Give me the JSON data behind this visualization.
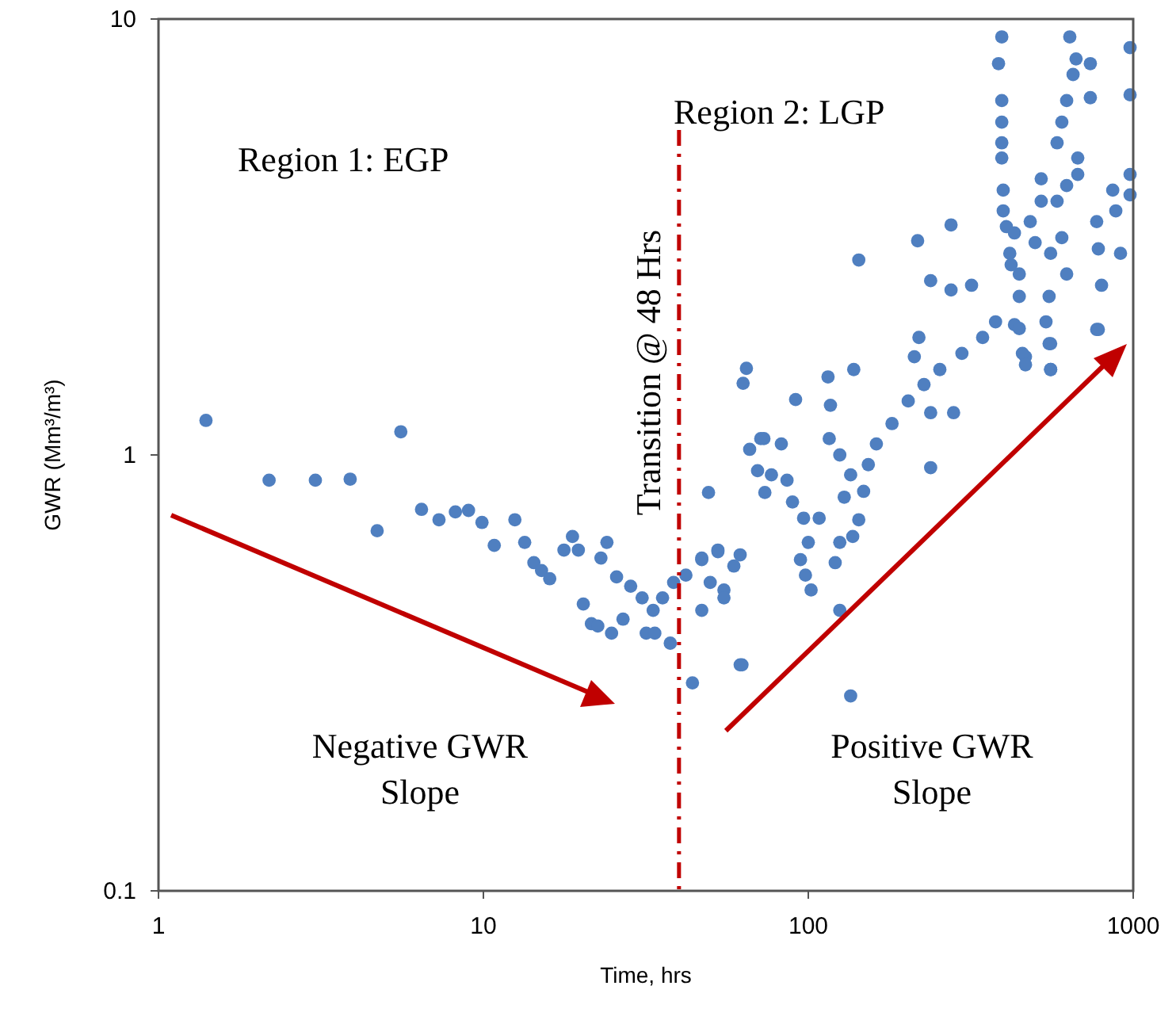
{
  "chart_data": {
    "type": "scatter",
    "xlabel": "Time, hrs",
    "ylabel": "GWR (Mm³/m³)",
    "log": "xy",
    "xlim": [
      1,
      1000
    ],
    "ylim": [
      0.1,
      10
    ],
    "xticks": [
      1,
      10,
      100,
      1000
    ],
    "yticks": [
      0.1,
      1,
      10
    ],
    "grid": false,
    "marker": "circle",
    "annotations": [
      "Region 1: EGP",
      "Region 2: LGP",
      "Negative GWR Slope",
      "Positive GWR Slope"
    ],
    "ref_lines": [
      {
        "axis": "x",
        "value": 40,
        "label": "Transition @ 48 Hrs",
        "color": "#c00000",
        "line_style": "dashed"
      }
    ],
    "series": [
      {
        "color": "#4f7fc0",
        "x": [
          1.4,
          2.19,
          3.04,
          3.89,
          5.57,
          4.71,
          6.45,
          7.3,
          8.2,
          9.0,
          9.9,
          10.8,
          12.5,
          13.4,
          14.3,
          15.1,
          16.0,
          18.8,
          17.7,
          19.6,
          24.0,
          23.0,
          25.7,
          20.3,
          21.5,
          22.5,
          24.8,
          26.9,
          28.4,
          30.8,
          33.3,
          35.6,
          38.5,
          31.7,
          33.7,
          37.6,
          44,
          42,
          47,
          52.7,
          49.9,
          55,
          47,
          59,
          61.7,
          49.3,
          64.5,
          63,
          91.4,
          115,
          138,
          117,
          66,
          73,
          82.6,
          69.8,
          77,
          86,
          73.5,
          89.4,
          96.7,
          108,
          100,
          94.6,
          98,
          102,
          121,
          125,
          137,
          143,
          116,
          125,
          135,
          129,
          148,
          153,
          162,
          181,
          203,
          227,
          254,
          297,
          344,
          377,
          219,
          212,
          238,
          280,
          238,
          125,
          135,
          62.5,
          47,
          52.7,
          61.7,
          55,
          431,
          551,
          557,
          466,
          772,
          394,
          385,
          394,
          394,
          394,
          394,
          398,
          407,
          421,
          446,
          446,
          456,
          466,
          482,
          521,
          521,
          557,
          551,
          539,
          557,
          557,
          583,
          583,
          603,
          624,
          653,
          667,
          638,
          675,
          675,
          624,
          603,
          624,
          738,
          738,
          772,
          781,
          799,
          865,
          884,
          914,
          978,
          978,
          978,
          978,
          781,
          398,
          431,
          499,
          446,
          417,
          275,
          217,
          143,
          238,
          275,
          318,
          71.4
        ],
        "values": [
          1.2,
          0.875,
          0.875,
          0.88,
          1.13,
          0.67,
          0.75,
          0.71,
          0.74,
          0.746,
          0.7,
          0.62,
          0.71,
          0.63,
          0.566,
          0.543,
          0.52,
          0.65,
          0.605,
          0.605,
          0.63,
          0.58,
          0.525,
          0.455,
          0.41,
          0.405,
          0.39,
          0.42,
          0.5,
          0.47,
          0.44,
          0.47,
          0.51,
          0.39,
          0.39,
          0.37,
          0.3,
          0.53,
          0.58,
          0.6,
          0.51,
          0.49,
          0.44,
          0.556,
          0.33,
          0.82,
          1.58,
          1.46,
          1.34,
          1.51,
          1.57,
          1.3,
          1.03,
          1.09,
          1.06,
          0.92,
          0.9,
          0.875,
          0.82,
          0.78,
          0.716,
          0.716,
          0.63,
          0.575,
          0.53,
          0.49,
          0.566,
          0.63,
          0.65,
          0.71,
          1.09,
          1.0,
          0.9,
          0.8,
          0.825,
          0.95,
          1.06,
          1.18,
          1.33,
          1.45,
          1.57,
          1.71,
          1.86,
          2.02,
          1.86,
          1.68,
          1.25,
          1.25,
          0.935,
          0.44,
          0.28,
          0.33,
          0.575,
          0.605,
          0.59,
          0.47,
          1.99,
          1.8,
          1.57,
          1.68,
          1.94,
          9.1,
          7.9,
          6.5,
          5.8,
          5.2,
          4.8,
          4.05,
          3.34,
          2.73,
          2.31,
          1.95,
          1.71,
          1.61,
          3.43,
          3.82,
          4.3,
          2.9,
          2.31,
          2.02,
          1.8,
          1.57,
          3.82,
          5.2,
          5.8,
          6.5,
          7.46,
          8.1,
          9.1,
          4.8,
          4.4,
          4.15,
          3.15,
          2.6,
          7.9,
          6.6,
          3.43,
          2.97,
          2.45,
          4.05,
          3.63,
          2.9,
          8.6,
          6.7,
          4.4,
          3.95,
          1.94,
          3.63,
          3.23,
          3.07,
          2.6,
          2.9,
          3.37,
          3.1,
          2.8,
          2.51,
          2.39,
          2.45,
          1.09
        ]
      }
    ]
  }
}
